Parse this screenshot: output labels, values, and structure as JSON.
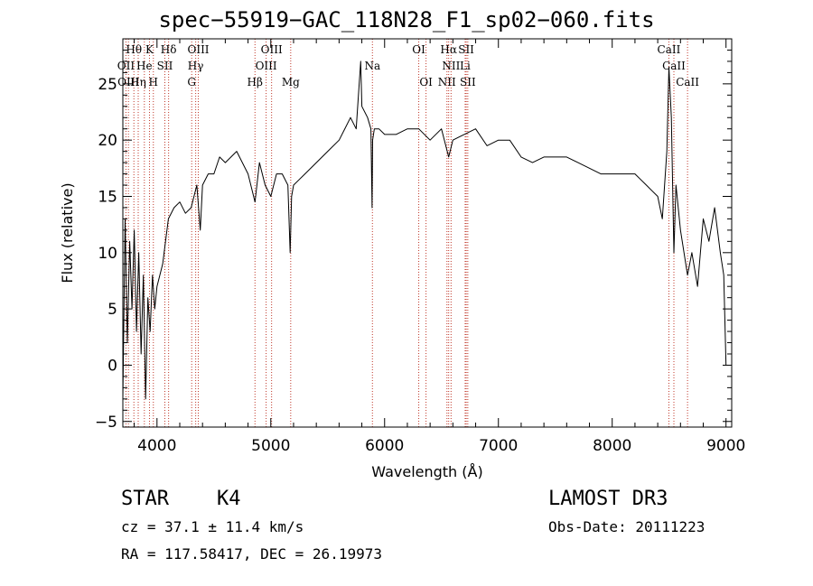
{
  "chart_data": {
    "type": "line",
    "title": "spec−55919−GAC_118N28_F1_sp02−060.fits",
    "xlabel": "Wavelength (Å)",
    "ylabel": "Flux (relative)",
    "xlim": [
      3700,
      9050
    ],
    "ylim": [
      -5.5,
      29
    ],
    "xticks": [
      4000,
      5000,
      6000,
      7000,
      8000,
      9000
    ],
    "yticks": [
      -5,
      0,
      5,
      10,
      15,
      20,
      25
    ],
    "xtick_labels": [
      "4000",
      "5000",
      "6000",
      "7000",
      "8000",
      "9000"
    ],
    "ytick_labels": [
      "−5",
      "0",
      "5",
      "10",
      "15",
      "20",
      "25"
    ],
    "series": [
      {
        "name": "spectrum",
        "color": "#000000",
        "x": [
          3700,
          3720,
          3740,
          3760,
          3780,
          3800,
          3820,
          3840,
          3860,
          3880,
          3900,
          3920,
          3940,
          3960,
          3980,
          4000,
          4050,
          4100,
          4150,
          4200,
          4250,
          4300,
          4350,
          4380,
          4400,
          4450,
          4500,
          4550,
          4600,
          4650,
          4700,
          4750,
          4800,
          4861,
          4900,
          4950,
          5000,
          5050,
          5100,
          5150,
          5170,
          5183,
          5200,
          5250,
          5300,
          5400,
          5500,
          5600,
          5700,
          5750,
          5790,
          5800,
          5850,
          5880,
          5890,
          5895,
          5910,
          5950,
          6000,
          6050,
          6100,
          6200,
          6300,
          6400,
          6500,
          6563,
          6600,
          6700,
          6800,
          6900,
          7000,
          7100,
          7200,
          7300,
          7400,
          7500,
          7600,
          7700,
          7800,
          7900,
          8000,
          8100,
          8200,
          8250,
          8300,
          8350,
          8400,
          8440,
          8480,
          8498,
          8520,
          8542,
          8560,
          8600,
          8662,
          8700,
          8750,
          8800,
          8850,
          8900,
          8950,
          8980,
          9000
        ],
        "y": [
          -3,
          13,
          2,
          11,
          5,
          12,
          3,
          10,
          1,
          8,
          -3,
          6,
          3,
          8,
          5,
          7,
          9,
          13,
          14,
          14.5,
          13.5,
          14,
          16,
          12,
          16,
          17,
          17,
          18.5,
          18,
          18.5,
          19,
          18,
          17,
          14.5,
          18,
          16,
          15,
          17,
          17,
          16,
          10,
          15,
          16,
          16.5,
          17,
          18,
          19,
          20,
          22,
          21,
          27,
          23,
          22,
          21,
          14,
          20,
          21,
          21,
          20.5,
          20.5,
          20.5,
          21,
          21,
          20,
          21,
          18.5,
          20,
          20.5,
          21,
          19.5,
          20,
          20,
          18.5,
          18,
          18.5,
          18.5,
          18.5,
          18,
          17.5,
          17,
          17,
          17,
          17,
          16.5,
          16,
          15.5,
          15,
          13,
          19,
          26.5,
          22,
          10,
          16,
          12,
          8,
          10,
          7,
          13,
          11,
          14,
          10,
          8,
          0
        ]
      }
    ],
    "spectral_lines": [
      {
        "label": "Hθ",
        "x": 3797,
        "row": 0
      },
      {
        "label": "OII",
        "x": 3727,
        "row": 1
      },
      {
        "label": "OIII",
        "x": 3749,
        "row": 2
      },
      {
        "label": "K",
        "x": 3934,
        "row": 0
      },
      {
        "label": "He",
        "x": 3889,
        "row": 1
      },
      {
        "label": "Hη",
        "x": 3835,
        "row": 2
      },
      {
        "label": "H",
        "x": 3968,
        "row": 2
      },
      {
        "label": "SII",
        "x": 4069,
        "row": 1
      },
      {
        "label": "Hδ",
        "x": 4102,
        "row": 0
      },
      {
        "label": "OIII",
        "x": 4363,
        "row": 0
      },
      {
        "label": "Hγ",
        "x": 4340,
        "row": 1
      },
      {
        "label": "G",
        "x": 4305,
        "row": 2
      },
      {
        "label": "OIII",
        "x": 5007,
        "row": 0
      },
      {
        "label": "OIII",
        "x": 4959,
        "row": 1
      },
      {
        "label": "Hβ",
        "x": 4861,
        "row": 2
      },
      {
        "label": "Mg",
        "x": 5175,
        "row": 2
      },
      {
        "label": "Na",
        "x": 5893,
        "row": 1
      },
      {
        "label": "OI",
        "x": 6300,
        "row": 0
      },
      {
        "label": "OI",
        "x": 6364,
        "row": 2
      },
      {
        "label": "Hα",
        "x": 6563,
        "row": 0
      },
      {
        "label": "NII",
        "x": 6584,
        "row": 1
      },
      {
        "label": "NII",
        "x": 6548,
        "row": 2
      },
      {
        "label": "SII",
        "x": 6717,
        "row": 0
      },
      {
        "label": "Li",
        "x": 6708,
        "row": 1
      },
      {
        "label": "SII",
        "x": 6731,
        "row": 2
      },
      {
        "label": "CaII",
        "x": 8498,
        "row": 0
      },
      {
        "label": "CaII",
        "x": 8542,
        "row": 1
      },
      {
        "label": "CaII",
        "x": 8662,
        "row": 2
      }
    ]
  },
  "info": {
    "object_class": "STAR",
    "subclass": "K4",
    "survey": "LAMOST DR3",
    "cz": "cz = 37.1 ± 11.4 km/s",
    "obs_date": "Obs-Date: 20111223",
    "coords": "RA = 117.58417, DEC =  26.19973"
  },
  "colors": {
    "line_marker": "#c0392b",
    "spectrum": "#000000"
  }
}
